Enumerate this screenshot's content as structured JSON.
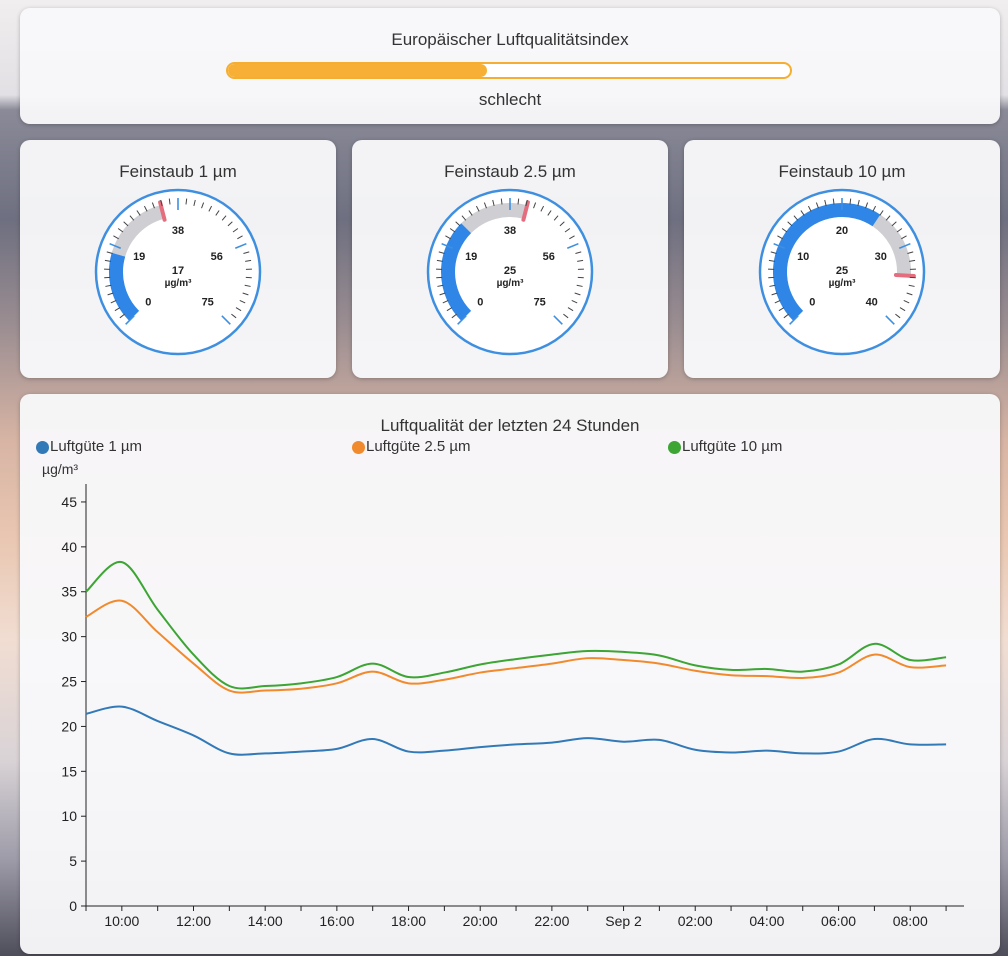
{
  "aqi": {
    "title": "Europäischer Luftqualitätsindex",
    "level": 0.46,
    "status": "schlecht",
    "color": "#f7b035"
  },
  "gauges": [
    {
      "title": "Feinstaub 1 µm",
      "value": "17",
      "unit": "µg/m³",
      "min": 0,
      "max": 75,
      "reading": 17,
      "ticks": [
        "0",
        "19",
        "38",
        "56",
        "75"
      ],
      "colors": {
        "ring": "#3f8fe0",
        "fill": "#2f86e6",
        "warn": "#e46e7e"
      }
    },
    {
      "title": "Feinstaub 2.5 µm",
      "value": "25",
      "unit": "µg/m³",
      "min": 0,
      "max": 75,
      "reading": 25,
      "ticks": [
        "0",
        "19",
        "38",
        "56",
        "75"
      ],
      "colors": {
        "ring": "#3f8fe0",
        "fill": "#2f86e6",
        "warn": "#e46e7e"
      }
    },
    {
      "title": "Feinstaub 10 µm",
      "value": "25",
      "unit": "µg/m³",
      "min": 0,
      "max": 40,
      "reading": 25,
      "ticks": [
        "0",
        "10",
        "20",
        "30",
        "40"
      ],
      "colors": {
        "ring": "#3f8fe0",
        "fill": "#2f86e6",
        "warn": "#e46e7e"
      }
    }
  ],
  "chart_data": {
    "type": "line",
    "title": "Luftqualität der letzten 24 Stunden",
    "ylabel": "µg/m³",
    "xlabel": "",
    "ylim": [
      0,
      47
    ],
    "yticks": [
      "0",
      "5",
      "10",
      "15",
      "20",
      "25",
      "30",
      "35",
      "40",
      "45"
    ],
    "xtick_labels": [
      "10:00",
      "12:00",
      "14:00",
      "16:00",
      "18:00",
      "20:00",
      "22:00",
      "Sep 2",
      "02:00",
      "04:00",
      "06:00",
      "08:00"
    ],
    "grid": false,
    "legend": "top",
    "x_hours": [
      0,
      1,
      2,
      3,
      4,
      5,
      6,
      7,
      8,
      9,
      10,
      11,
      12,
      13,
      14,
      15,
      16,
      17,
      18,
      19,
      20,
      21,
      22,
      23,
      24
    ],
    "series": [
      {
        "name": "Luftgüte 1 µm",
        "color": "#3279b8",
        "values": [
          21.4,
          22.2,
          20.6,
          19.0,
          17.0,
          17.0,
          17.2,
          17.5,
          18.6,
          17.2,
          17.3,
          17.7,
          18.0,
          18.2,
          18.7,
          18.3,
          18.5,
          17.4,
          17.1,
          17.3,
          17.0,
          17.2,
          18.6,
          18.0,
          18.0
        ]
      },
      {
        "name": "Luftgüte 2.5 µm",
        "color": "#f18a2c",
        "values": [
          32.2,
          34.0,
          30.5,
          27.0,
          24.0,
          24.0,
          24.2,
          24.8,
          26.1,
          24.8,
          25.2,
          26.0,
          26.5,
          27.0,
          27.6,
          27.4,
          27.0,
          26.2,
          25.7,
          25.6,
          25.4,
          26.0,
          28.0,
          26.6,
          26.8
        ]
      },
      {
        "name": "Luftgüte 10 µm",
        "color": "#3ca534",
        "values": [
          35.0,
          38.3,
          33.0,
          28.0,
          24.5,
          24.5,
          24.8,
          25.5,
          27.0,
          25.5,
          26.0,
          26.9,
          27.5,
          28.0,
          28.4,
          28.3,
          27.9,
          26.8,
          26.3,
          26.4,
          26.1,
          26.9,
          29.2,
          27.4,
          27.7
        ]
      }
    ]
  }
}
